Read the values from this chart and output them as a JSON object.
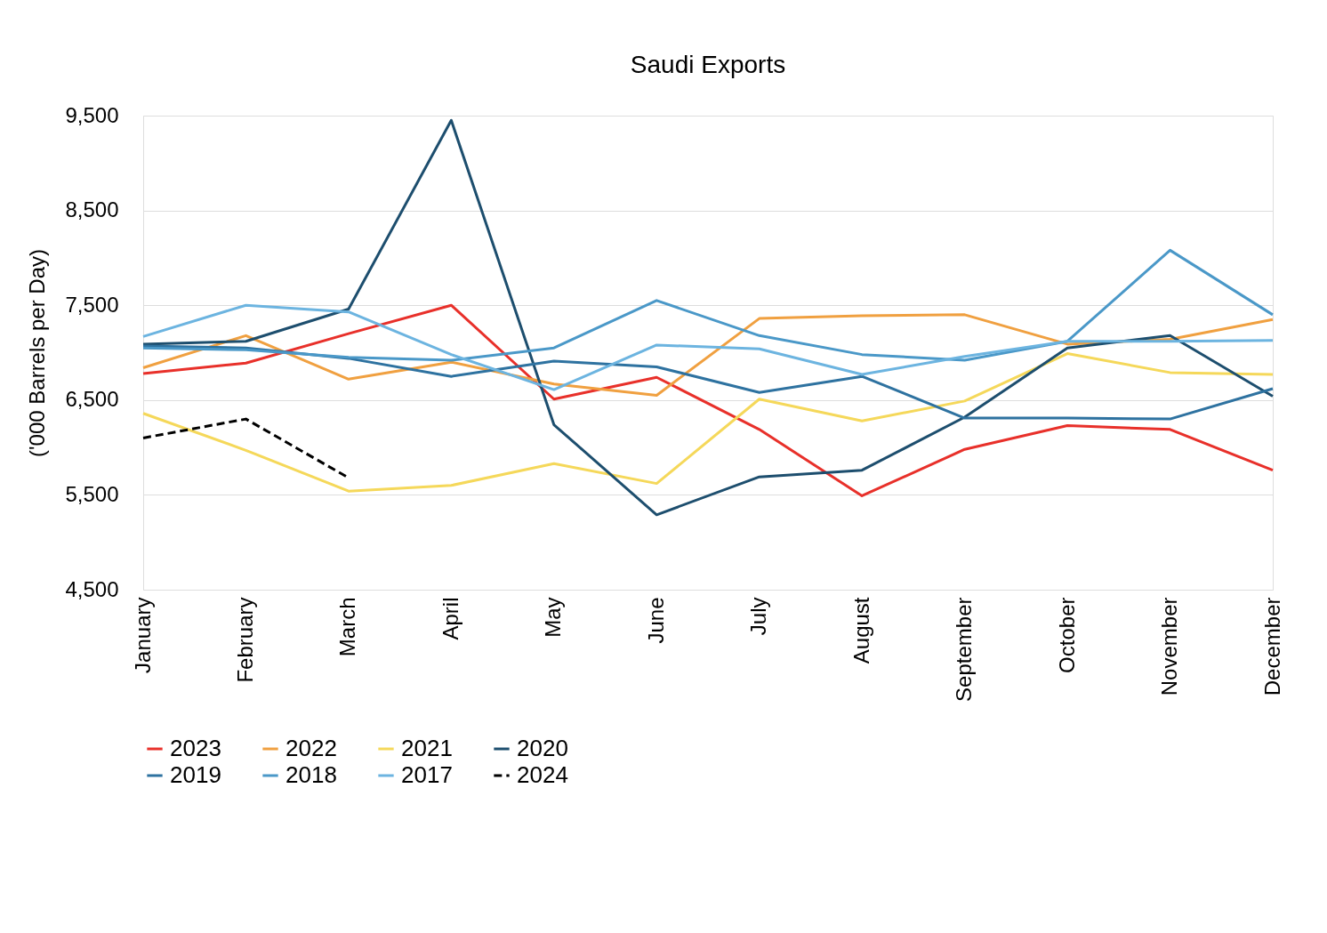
{
  "chart_data": {
    "type": "line",
    "title": "Saudi Exports",
    "ylabel": "('000 Barrels per Day)",
    "categories": [
      "January",
      "February",
      "March",
      "April",
      "May",
      "June",
      "July",
      "August",
      "September",
      "October",
      "November",
      "December"
    ],
    "ylim": [
      4500,
      9500
    ],
    "yticks": [
      {
        "value": 4500,
        "label": "4,500"
      },
      {
        "value": 5500,
        "label": "5,500"
      },
      {
        "value": 6500,
        "label": "6,500"
      },
      {
        "value": 7500,
        "label": "7,500"
      },
      {
        "value": 8500,
        "label": "8,500"
      },
      {
        "value": 9500,
        "label": "9,500"
      }
    ],
    "grid": "y",
    "legend": "bottom",
    "series": [
      {
        "name": "2023",
        "color": "#e8302a",
        "values": [
          6780,
          6890,
          7200,
          7500,
          6510,
          6740,
          6190,
          5490,
          5980,
          6230,
          6190,
          5760
        ]
      },
      {
        "name": "2022",
        "color": "#f0a040",
        "values": [
          6840,
          7180,
          6720,
          6900,
          6670,
          6550,
          7360,
          7390,
          7400,
          7090,
          7140,
          7350
        ]
      },
      {
        "name": "2021",
        "color": "#f5d85a",
        "values": [
          6360,
          5970,
          5540,
          5600,
          5830,
          5620,
          6510,
          6280,
          6490,
          6990,
          6790,
          6770
        ]
      },
      {
        "name": "2020",
        "color": "#1d4e6e",
        "values": [
          7090,
          7120,
          7460,
          9450,
          6240,
          5290,
          5690,
          5760,
          6320,
          7050,
          7180,
          6540
        ]
      },
      {
        "name": "2019",
        "color": "#2e72a0",
        "values": [
          7070,
          7050,
          6940,
          6750,
          6910,
          6850,
          6580,
          6750,
          6310,
          6310,
          6300,
          6620
        ]
      },
      {
        "name": "2018",
        "color": "#4a98c8",
        "values": [
          7050,
          7030,
          6950,
          6920,
          7050,
          7550,
          7180,
          6980,
          6920,
          7120,
          8080,
          7400
        ]
      },
      {
        "name": "2017",
        "color": "#6cb4e0",
        "values": [
          7170,
          7500,
          7430,
          6980,
          6610,
          7080,
          7040,
          6770,
          6960,
          7120,
          7120,
          7130
        ]
      },
      {
        "name": "2024",
        "color": "#000000",
        "line_style": "dashed",
        "values": [
          6100,
          6300,
          5680,
          null,
          null,
          null,
          null,
          null,
          null,
          null,
          null,
          null
        ]
      }
    ]
  }
}
